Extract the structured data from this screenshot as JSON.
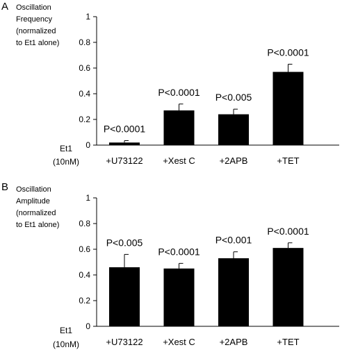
{
  "chart_data": [
    {
      "type": "bar",
      "panel_label": "A",
      "ylabel": [
        "Oscillation",
        "Frequency",
        "(normalized",
        "to Et1 alone)"
      ],
      "row_label": [
        "Et1",
        "(10nM)"
      ],
      "categories": [
        "+U73122",
        "+Xest C",
        "+2APB",
        "+TET"
      ],
      "values": [
        0.02,
        0.27,
        0.24,
        0.57
      ],
      "errors": [
        0.015,
        0.05,
        0.04,
        0.06
      ],
      "annotations": [
        "P<0.0001",
        "P<0.0001",
        "P<0.005",
        "P<0.0001"
      ],
      "ylim": [
        0,
        1
      ],
      "yticks": [
        "0",
        "0.2",
        "0.4",
        "0.6",
        "0.8",
        "1"
      ],
      "bar_color": "#000000",
      "grid": false
    },
    {
      "type": "bar",
      "panel_label": "B",
      "ylabel": [
        "Oscillation",
        "Amplitude",
        "(normalized",
        "to Et1 alone)"
      ],
      "row_label": [
        "Et1",
        "(10nM)"
      ],
      "categories": [
        "+U73122",
        "+Xest C",
        "+2APB",
        "+TET"
      ],
      "values": [
        0.46,
        0.45,
        0.53,
        0.61
      ],
      "errors": [
        0.1,
        0.04,
        0.05,
        0.04
      ],
      "annotations": [
        "P<0.005",
        "P<0.0001",
        "P<0.001",
        "P<0.0001"
      ],
      "ylim": [
        0,
        1
      ],
      "yticks": [
        "0",
        "0.2",
        "0.4",
        "0.6",
        "0.8",
        "1"
      ],
      "bar_color": "#000000",
      "grid": false
    }
  ]
}
